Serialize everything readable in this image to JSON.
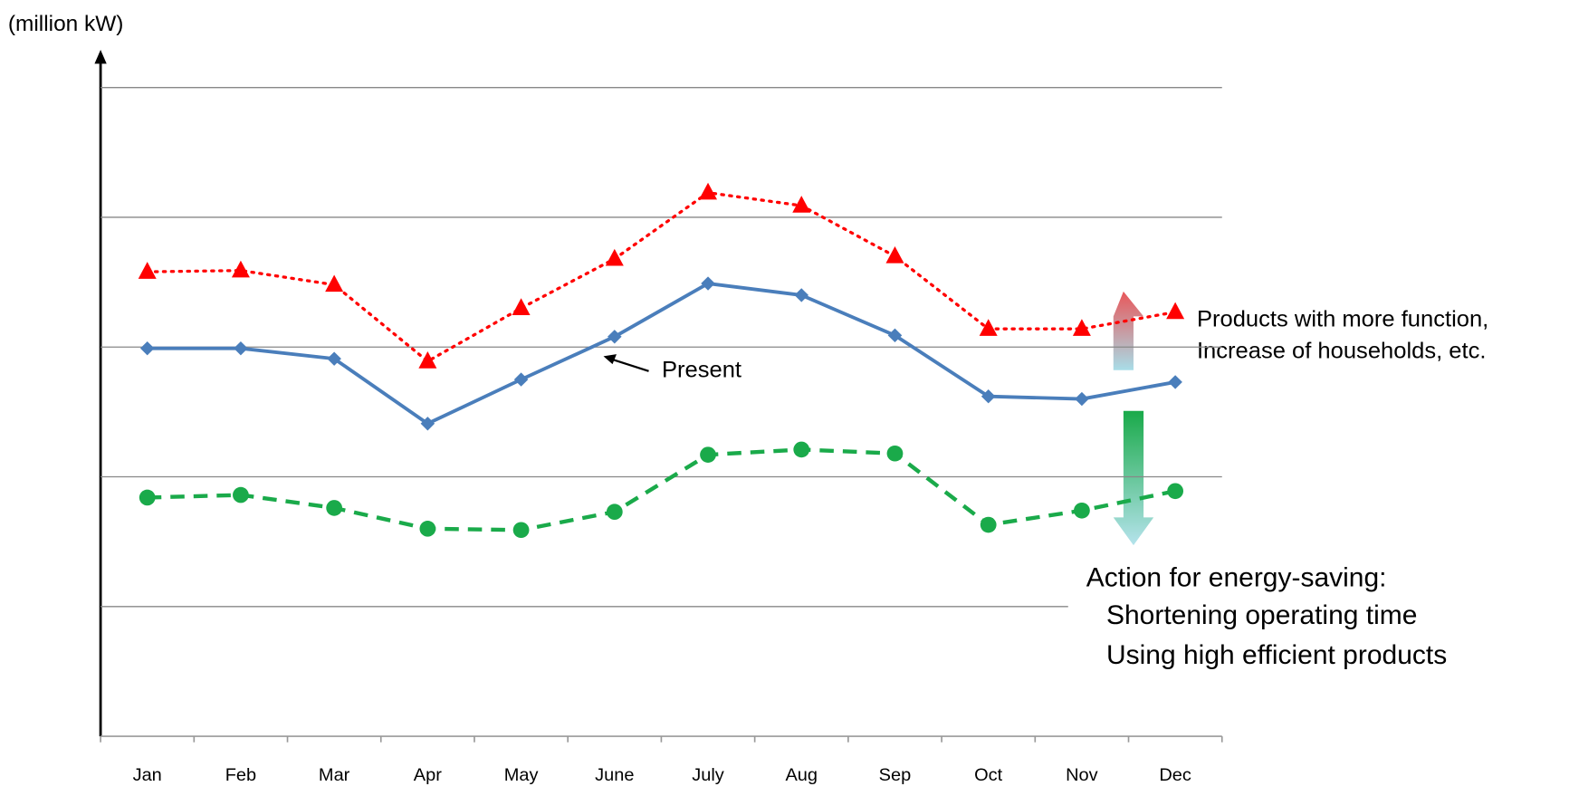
{
  "chart_data": {
    "type": "line",
    "y_label": "(million kW)",
    "categories": [
      "Jan",
      "Feb",
      "Mar",
      "Apr",
      "May",
      "June",
      "July",
      "Aug",
      "Sep",
      "Oct",
      "Nov",
      "Dec"
    ],
    "series": [
      {
        "color": "#ff0000",
        "marker": "triangle",
        "dash": "dotted",
        "values": [
          3.58,
          3.59,
          3.48,
          2.89,
          3.3,
          3.68,
          4.19,
          4.09,
          3.7,
          3.14,
          3.14,
          3.27
        ]
      },
      {
        "name": "Present",
        "color": "#4a7ebb",
        "marker": "diamond",
        "dash": "solid",
        "values": [
          2.99,
          2.99,
          2.91,
          2.41,
          2.75,
          3.08,
          3.49,
          3.4,
          3.09,
          2.62,
          2.6,
          2.73
        ]
      },
      {
        "color": "#1aaa4a",
        "marker": "circle",
        "dash": "dashed",
        "values": [
          1.84,
          1.86,
          1.76,
          1.6,
          1.59,
          1.73,
          2.17,
          2.21,
          2.18,
          1.63,
          1.74,
          1.89
        ]
      }
    ],
    "ylim": [
      0,
      5
    ],
    "yticks": [
      1,
      2,
      3,
      4,
      5
    ],
    "grid": true,
    "annotations": [
      [
        "Products with more function,",
        "Increase of households, etc."
      ],
      [
        "Action for energy-saving:",
        "Shortening operating time",
        "Using high efficient products"
      ]
    ]
  }
}
